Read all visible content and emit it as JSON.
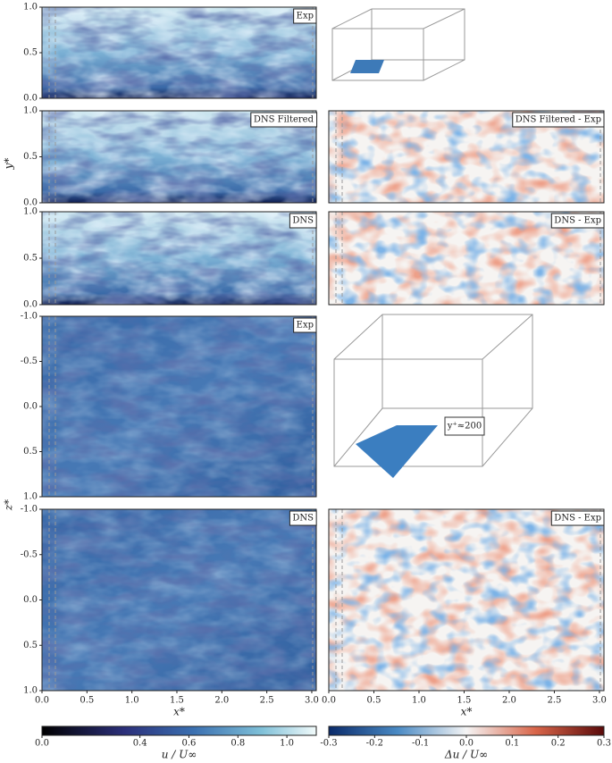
{
  "panels": [
    {
      "label": "Exp"
    },
    {
      "label": "DNS Filtered"
    },
    {
      "label": "DNS"
    },
    {
      "label": "Exp"
    },
    {
      "label": "DNS"
    },
    {
      "label": "DNS Filtered - Exp"
    },
    {
      "label": "DNS - Exp"
    },
    {
      "label": "DNS - Exp"
    }
  ],
  "annotation": "y⁺≈200",
  "axes": {
    "x": {
      "label": "x*",
      "lim": [
        0,
        3.05
      ],
      "ticks": [
        {
          "value": 0,
          "label": "0.0"
        },
        {
          "value": 0.5,
          "label": "0.5"
        },
        {
          "value": 1,
          "label": "1.0"
        },
        {
          "value": 1.5,
          "label": "1.5"
        },
        {
          "value": 2,
          "label": "2.0"
        },
        {
          "value": 2.5,
          "label": "2.5"
        },
        {
          "value": 3,
          "label": "3.0"
        }
      ]
    },
    "y": {
      "label": "y*",
      "lim": [
        0,
        1
      ],
      "ticks": [
        {
          "value": 0,
          "label": "0.0"
        },
        {
          "value": 0.5,
          "label": "0.5"
        },
        {
          "value": 1,
          "label": "1.0"
        }
      ]
    },
    "z": {
      "label": "z*",
      "lim": [
        -1,
        1
      ],
      "ticks": [
        {
          "value": -1,
          "label": "-1.0"
        },
        {
          "value": -0.5,
          "label": "-0.5"
        },
        {
          "value": 0,
          "label": "0.0"
        },
        {
          "value": 0.5,
          "label": "0.5"
        },
        {
          "value": 1,
          "label": "1.0"
        }
      ]
    }
  },
  "colorbars": [
    {
      "label": "u / U∞",
      "lim": [
        0,
        1.12
      ],
      "ticks": [
        {
          "value": 0,
          "label": "0.0"
        },
        {
          "value": 0.4,
          "label": "0.4"
        },
        {
          "value": 0.6,
          "label": "0.6"
        },
        {
          "value": 0.8,
          "label": "0.8"
        },
        {
          "value": 1,
          "label": "1.0"
        }
      ]
    },
    {
      "label": "Δu / U∞",
      "lim": [
        -0.3,
        0.3
      ],
      "ticks": [
        -0.3,
        -0.2,
        -0.1,
        {
          "value": 0,
          "label": "0.0"
        },
        0.1,
        0.2,
        0.3
      ]
    }
  ]
}
